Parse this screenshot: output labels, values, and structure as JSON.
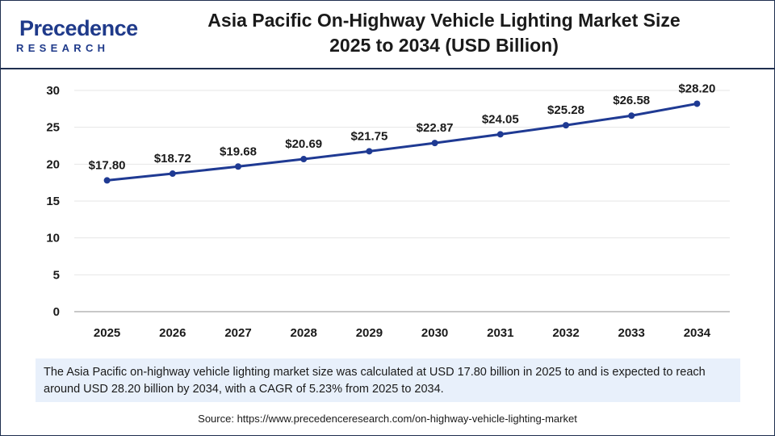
{
  "logo": {
    "name": "Precedence",
    "tagline": "RESEARCH"
  },
  "header": {
    "title_line1": "Asia Pacific On-Highway Vehicle Lighting Market Size",
    "title_line2": "2025 to 2034 (USD Billion)"
  },
  "chart_data": {
    "type": "line",
    "title": "Asia Pacific On-Highway Vehicle Lighting Market Size 2025 to 2034 (USD Billion)",
    "categories": [
      "2025",
      "2026",
      "2027",
      "2028",
      "2029",
      "2030",
      "2031",
      "2032",
      "2033",
      "2034"
    ],
    "series": [
      {
        "name": "Market Size (USD Billion)",
        "values": [
          17.8,
          18.72,
          19.68,
          20.69,
          21.75,
          22.87,
          24.05,
          25.28,
          26.58,
          28.2
        ],
        "labels": [
          "$17.80",
          "$18.72",
          "$19.68",
          "$20.69",
          "$21.75",
          "$22.87",
          "$24.05",
          "$25.28",
          "$26.58",
          "$28.20"
        ],
        "color": "#1f3a93"
      }
    ],
    "yticks": [
      "0",
      "5",
      "10",
      "15",
      "20",
      "25",
      "30"
    ],
    "ylim": [
      0,
      30
    ],
    "xlabel": "",
    "ylabel": "",
    "grid": true,
    "gridColor": "#e6e6e6"
  },
  "summary": {
    "text": "The Asia Pacific  on-highway vehicle lighting market size was calculated at USD 17.80 billion in 2025 to and is expected to reach around USD 28.20 billion by 2034, with a CAGR of 5.23% from 2025 to 2034."
  },
  "source": {
    "text": "Source: https://www.precedenceresearch.com/on-highway-vehicle-lighting-market"
  }
}
